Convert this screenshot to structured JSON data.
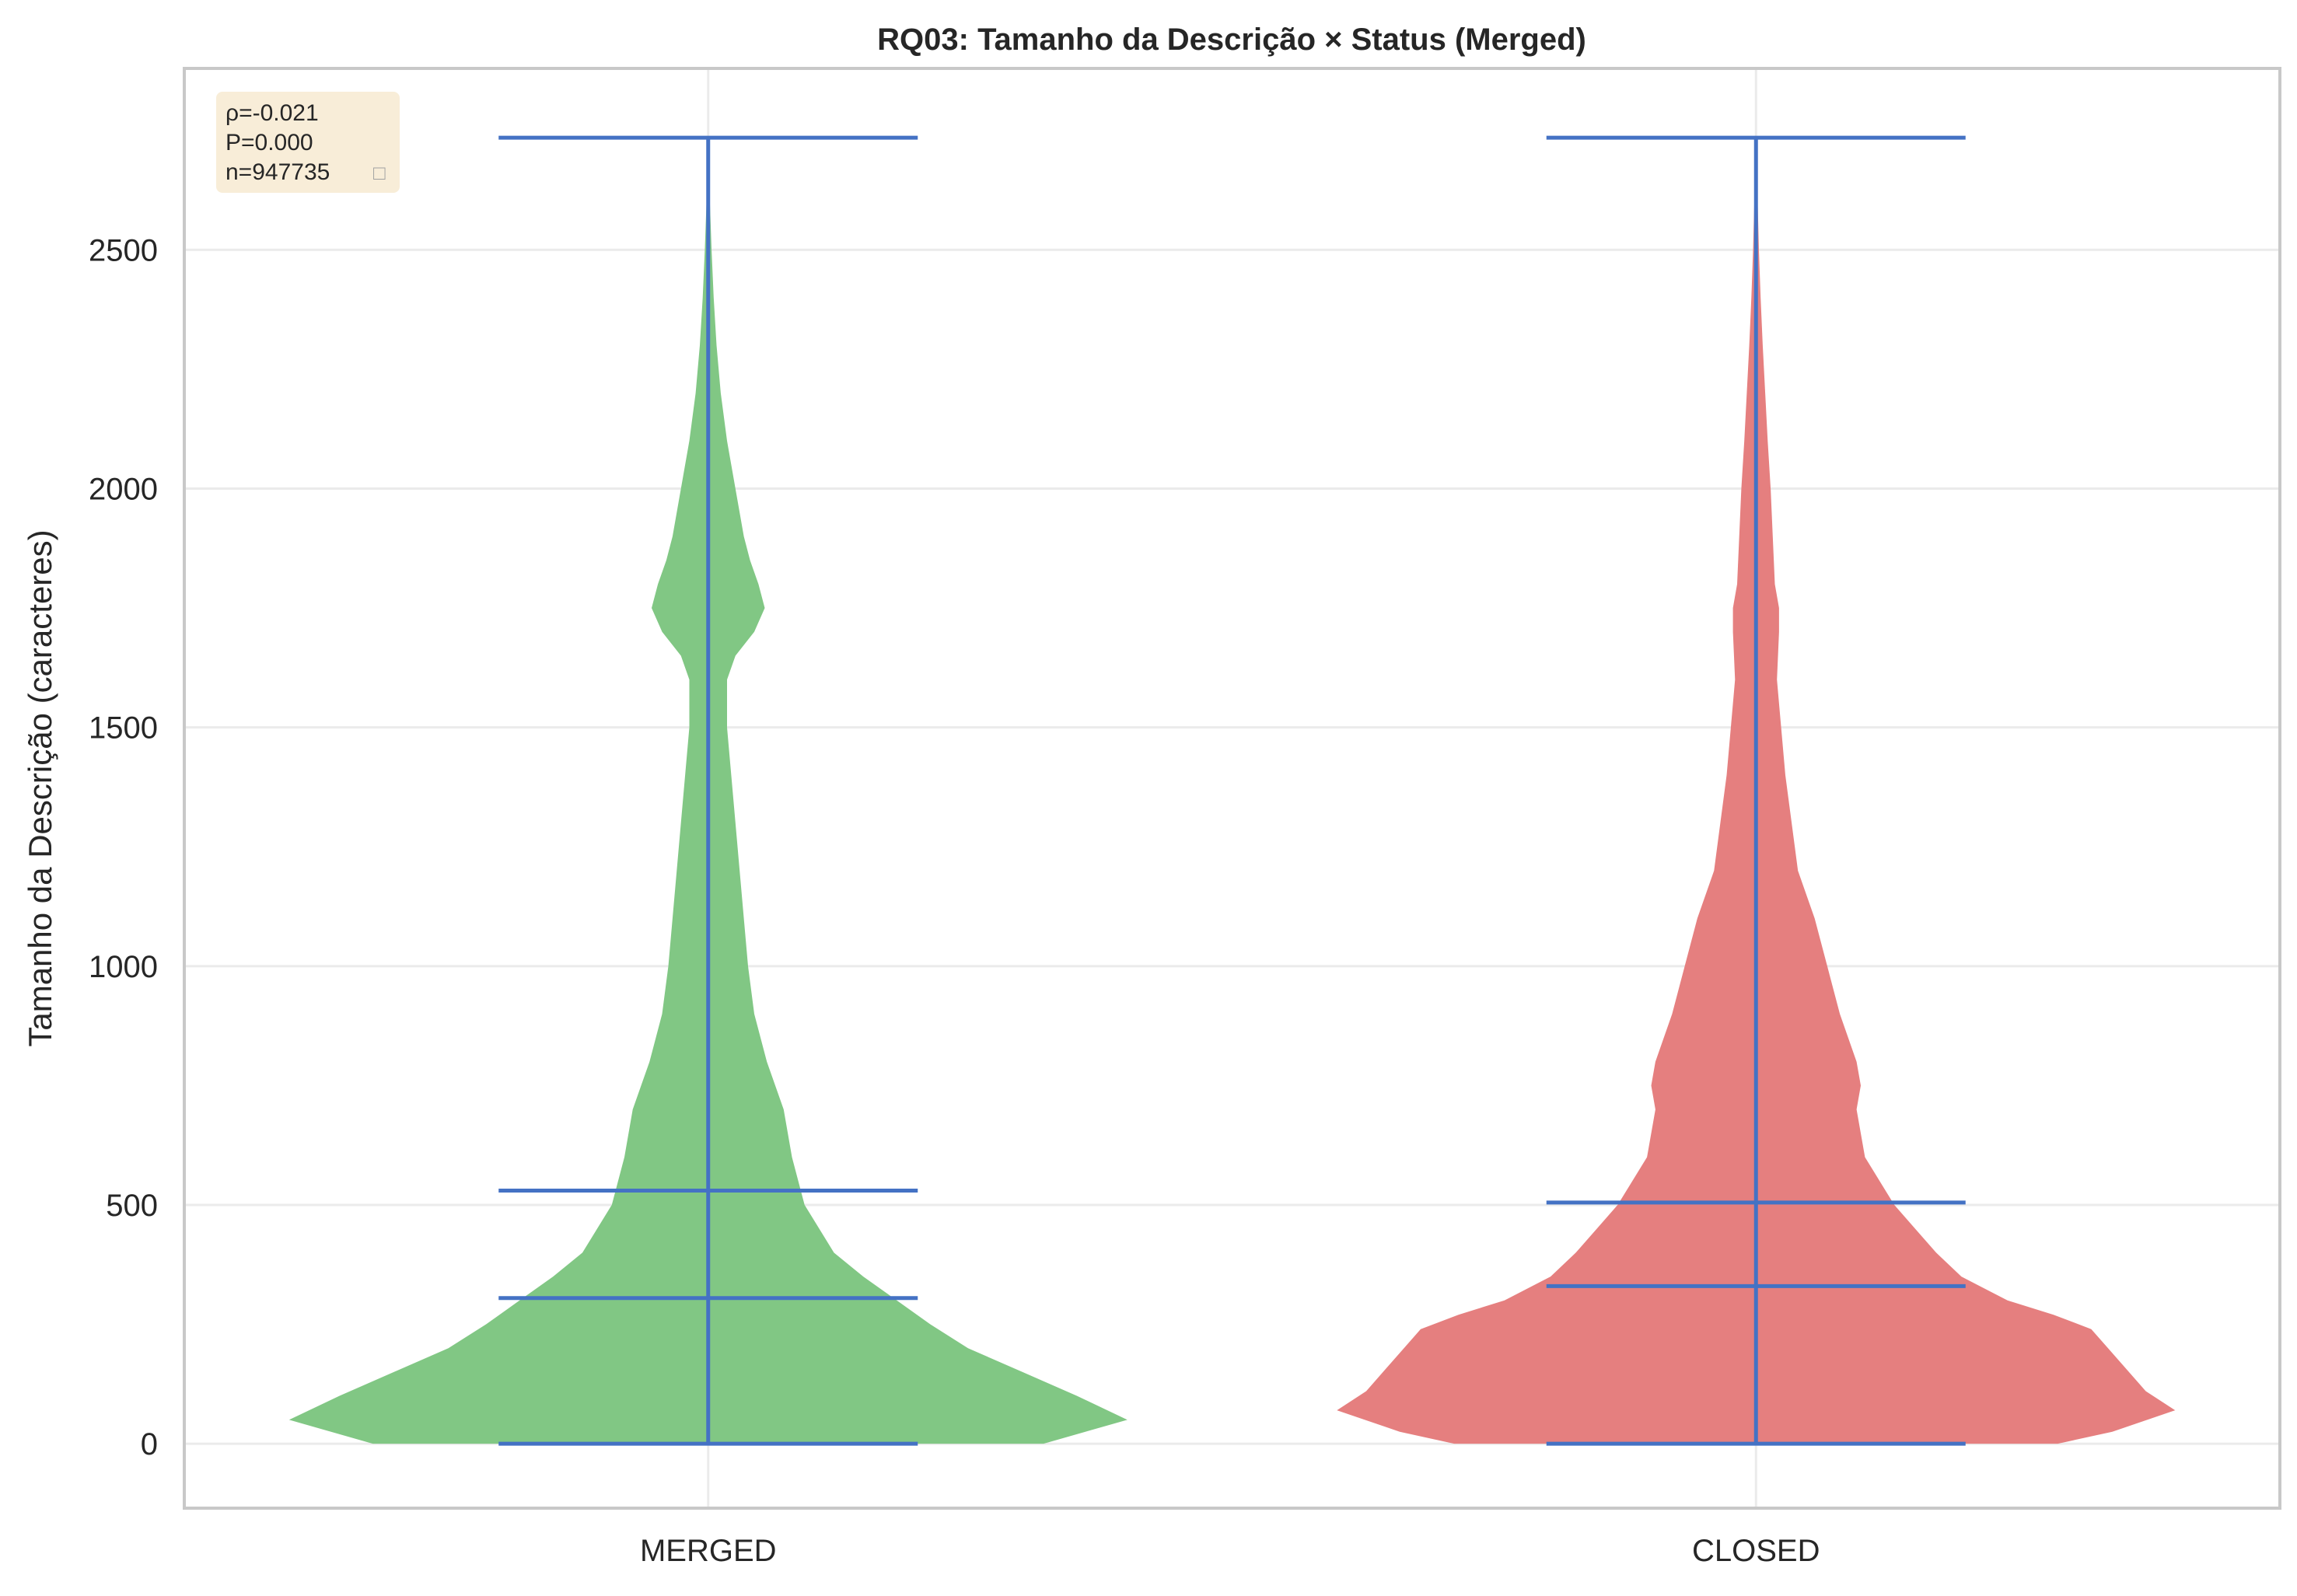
{
  "chart_data": {
    "type": "violin",
    "title": "RQ03: Tamanho da Descrição × Status (Merged)",
    "xlabel": "",
    "ylabel": "Tamanho da Descrição (caracteres)",
    "categories": [
      "MERGED",
      "CLOSED"
    ],
    "ylim": [
      -135,
      2880
    ],
    "yticks": [
      0,
      500,
      1000,
      1500,
      2000,
      2500
    ],
    "grid": true,
    "stats_box": {
      "position": "top-left",
      "lines": [
        "ρ=-0.021",
        "P=0.000",
        "n=947735"
      ],
      "glyph": "□"
    },
    "colors": {
      "MERGED": "#81c784",
      "CLOSED": "#e57f7f",
      "stat_lines": "#4472c4",
      "stats_box_bg": "#f8edd8",
      "grid": "#ebebeb",
      "frame": "#c8c8c8"
    },
    "series": [
      {
        "category": "MERGED",
        "min": 0,
        "max": 2735,
        "q1": 305,
        "q3": 530,
        "density_width": [
          [
            0,
            0.8
          ],
          [
            50,
            1.0
          ],
          [
            100,
            0.88
          ],
          [
            150,
            0.75
          ],
          [
            200,
            0.62
          ],
          [
            250,
            0.53
          ],
          [
            300,
            0.45
          ],
          [
            350,
            0.37
          ],
          [
            400,
            0.3
          ],
          [
            500,
            0.23
          ],
          [
            600,
            0.2
          ],
          [
            700,
            0.18
          ],
          [
            800,
            0.14
          ],
          [
            900,
            0.11
          ],
          [
            1000,
            0.095
          ],
          [
            1100,
            0.085
          ],
          [
            1200,
            0.075
          ],
          [
            1300,
            0.065
          ],
          [
            1400,
            0.055
          ],
          [
            1500,
            0.045
          ],
          [
            1600,
            0.045
          ],
          [
            1650,
            0.065
          ],
          [
            1700,
            0.11
          ],
          [
            1750,
            0.135
          ],
          [
            1800,
            0.12
          ],
          [
            1850,
            0.1
          ],
          [
            1900,
            0.085
          ],
          [
            2000,
            0.065
          ],
          [
            2100,
            0.045
          ],
          [
            2200,
            0.03
          ],
          [
            2300,
            0.02
          ],
          [
            2400,
            0.013
          ],
          [
            2500,
            0.008
          ],
          [
            2600,
            0.004
          ],
          [
            2735,
            0.0
          ]
        ]
      },
      {
        "category": "CLOSED",
        "min": 0,
        "max": 2735,
        "q1": 330,
        "q3": 505,
        "density_width": [
          [
            0,
            0.72
          ],
          [
            25,
            0.85
          ],
          [
            70,
            1.0
          ],
          [
            110,
            0.93
          ],
          [
            200,
            0.84
          ],
          [
            240,
            0.8
          ],
          [
            270,
            0.71
          ],
          [
            300,
            0.6
          ],
          [
            350,
            0.49
          ],
          [
            400,
            0.43
          ],
          [
            450,
            0.38
          ],
          [
            500,
            0.33
          ],
          [
            600,
            0.26
          ],
          [
            700,
            0.24
          ],
          [
            750,
            0.25
          ],
          [
            800,
            0.24
          ],
          [
            900,
            0.2
          ],
          [
            1000,
            0.17
          ],
          [
            1100,
            0.14
          ],
          [
            1200,
            0.1
          ],
          [
            1300,
            0.085
          ],
          [
            1400,
            0.07
          ],
          [
            1500,
            0.06
          ],
          [
            1600,
            0.05
          ],
          [
            1700,
            0.055
          ],
          [
            1750,
            0.055
          ],
          [
            1800,
            0.045
          ],
          [
            1900,
            0.04
          ],
          [
            2000,
            0.035
          ],
          [
            2100,
            0.028
          ],
          [
            2200,
            0.022
          ],
          [
            2300,
            0.016
          ],
          [
            2400,
            0.011
          ],
          [
            2500,
            0.007
          ],
          [
            2600,
            0.004
          ],
          [
            2735,
            0.0
          ]
        ]
      }
    ]
  }
}
